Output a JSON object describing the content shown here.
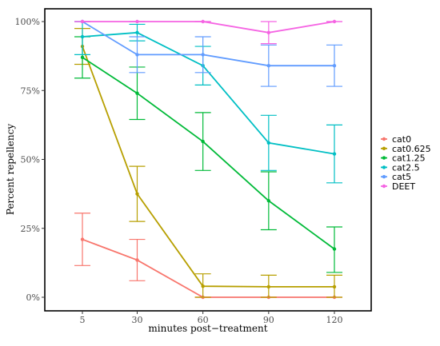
{
  "chart_data": {
    "type": "line",
    "title": "",
    "xlabel": "minutes post−treatment",
    "ylabel": "Percent repellency",
    "x": [
      5,
      30,
      60,
      90,
      120
    ],
    "x_tick_labels": [
      "5",
      "30",
      "60",
      "90",
      "120"
    ],
    "ylim": [
      0,
      1
    ],
    "y_ticks": [
      0,
      0.25,
      0.5,
      0.75,
      1.0
    ],
    "y_tick_labels": [
      "0%",
      "25%",
      "50%",
      "75%",
      "100%"
    ],
    "grid": false,
    "legend_position": "right",
    "error_bars": true,
    "series": [
      {
        "name": "cat0",
        "color": "#F8766D",
        "values": [
          0.21,
          0.135,
          0.0,
          0.0,
          0.0
        ],
        "lower": [
          0.115,
          0.06,
          0.0,
          0.0,
          0.0
        ],
        "upper": [
          0.305,
          0.21,
          0.0,
          0.0,
          0.0
        ]
      },
      {
        "name": "cat0.625",
        "color": "#B79F00",
        "values": [
          0.91,
          0.375,
          0.04,
          0.038,
          0.038
        ],
        "lower": [
          0.845,
          0.275,
          0.0,
          0.0,
          0.0
        ],
        "upper": [
          0.975,
          0.475,
          0.085,
          0.08,
          0.08
        ]
      },
      {
        "name": "cat1.25",
        "color": "#00BA38",
        "values": [
          0.87,
          0.74,
          0.565,
          0.35,
          0.175
        ],
        "lower": [
          0.795,
          0.645,
          0.46,
          0.245,
          0.09
        ],
        "upper": [
          0.945,
          0.835,
          0.67,
          0.455,
          0.255
        ]
      },
      {
        "name": "cat2.5",
        "color": "#00BFC4",
        "values": [
          0.945,
          0.96,
          0.84,
          0.56,
          0.52
        ],
        "lower": [
          0.88,
          0.93,
          0.77,
          0.46,
          0.415
        ],
        "upper": [
          1.0,
          0.99,
          0.91,
          0.66,
          0.625
        ]
      },
      {
        "name": "cat5",
        "color": "#619CFF",
        "values": [
          1.0,
          0.88,
          0.88,
          0.84,
          0.84
        ],
        "lower": [
          1.0,
          0.815,
          0.815,
          0.765,
          0.765
        ],
        "upper": [
          1.0,
          0.945,
          0.945,
          0.915,
          0.915
        ]
      },
      {
        "name": "DEET",
        "color": "#F564E3",
        "values": [
          1.0,
          1.0,
          1.0,
          0.96,
          1.0
        ],
        "lower": [
          1.0,
          1.0,
          1.0,
          0.92,
          1.0
        ],
        "upper": [
          1.0,
          1.0,
          1.0,
          1.0,
          1.0
        ]
      }
    ]
  }
}
